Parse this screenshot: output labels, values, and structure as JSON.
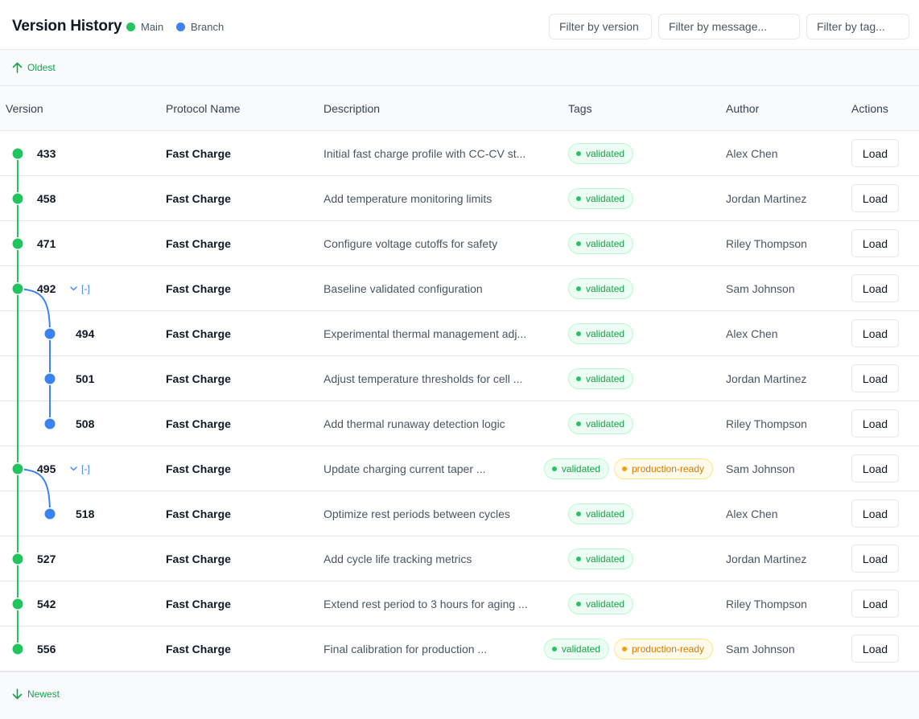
{
  "header": {
    "title": "Version History",
    "legend": [
      {
        "label": "Main",
        "color": "#22c55e"
      },
      {
        "label": "Branch",
        "color": "#3b82f6"
      }
    ],
    "filters": {
      "version_placeholder": "Filter by version",
      "message_placeholder": "Filter by message...",
      "tag_placeholder": "Filter by tag..."
    }
  },
  "nav": {
    "oldest": "Oldest",
    "newest": "Newest"
  },
  "columns": {
    "version": "Version",
    "protocol": "Protocol Name",
    "description": "Description",
    "tags": "Tags",
    "author": "Author",
    "actions": "Actions"
  },
  "toggle_label": "[-]",
  "load_label": "Load",
  "colors": {
    "main": "#22c55e",
    "branch": "#3b82f6"
  },
  "rows": [
    {
      "version": "433",
      "protocol": "Fast Charge",
      "description": "Initial fast charge profile with CC-CV st...",
      "tags": [
        "validated"
      ],
      "author": "Alex Chen",
      "lane": "main"
    },
    {
      "version": "458",
      "protocol": "Fast Charge",
      "description": "Add temperature monitoring limits",
      "tags": [
        "validated"
      ],
      "author": "Jordan Martinez",
      "lane": "main"
    },
    {
      "version": "471",
      "protocol": "Fast Charge",
      "description": "Configure voltage cutoffs for safety",
      "tags": [
        "validated"
      ],
      "author": "Riley Thompson",
      "lane": "main"
    },
    {
      "version": "492",
      "protocol": "Fast Charge",
      "description": "Baseline validated configuration",
      "tags": [
        "validated"
      ],
      "author": "Sam Johnson",
      "lane": "main",
      "toggle": true
    },
    {
      "version": "494",
      "protocol": "Fast Charge",
      "description": "Experimental thermal management adj...",
      "tags": [
        "validated"
      ],
      "author": "Alex Chen",
      "lane": "branch"
    },
    {
      "version": "501",
      "protocol": "Fast Charge",
      "description": "Adjust temperature thresholds for cell ...",
      "tags": [
        "validated"
      ],
      "author": "Jordan Martinez",
      "lane": "branch"
    },
    {
      "version": "508",
      "protocol": "Fast Charge",
      "description": "Add thermal runaway detection logic",
      "tags": [
        "validated"
      ],
      "author": "Riley Thompson",
      "lane": "branch"
    },
    {
      "version": "495",
      "protocol": "Fast Charge",
      "description": "Update charging current taper ...",
      "tags": [
        "validated",
        "production-ready"
      ],
      "author": "Sam Johnson",
      "lane": "main",
      "toggle": true
    },
    {
      "version": "518",
      "protocol": "Fast Charge",
      "description": "Optimize rest periods between cycles",
      "tags": [
        "validated"
      ],
      "author": "Alex Chen",
      "lane": "branch"
    },
    {
      "version": "527",
      "protocol": "Fast Charge",
      "description": "Add cycle life tracking metrics",
      "tags": [
        "validated"
      ],
      "author": "Jordan Martinez",
      "lane": "main"
    },
    {
      "version": "542",
      "protocol": "Fast Charge",
      "description": "Extend rest period to 3 hours for aging ...",
      "tags": [
        "validated"
      ],
      "author": "Riley Thompson",
      "lane": "main"
    },
    {
      "version": "556",
      "protocol": "Fast Charge",
      "description": "Final calibration for production ...",
      "tags": [
        "validated",
        "production-ready"
      ],
      "author": "Sam Johnson",
      "lane": "main"
    }
  ]
}
